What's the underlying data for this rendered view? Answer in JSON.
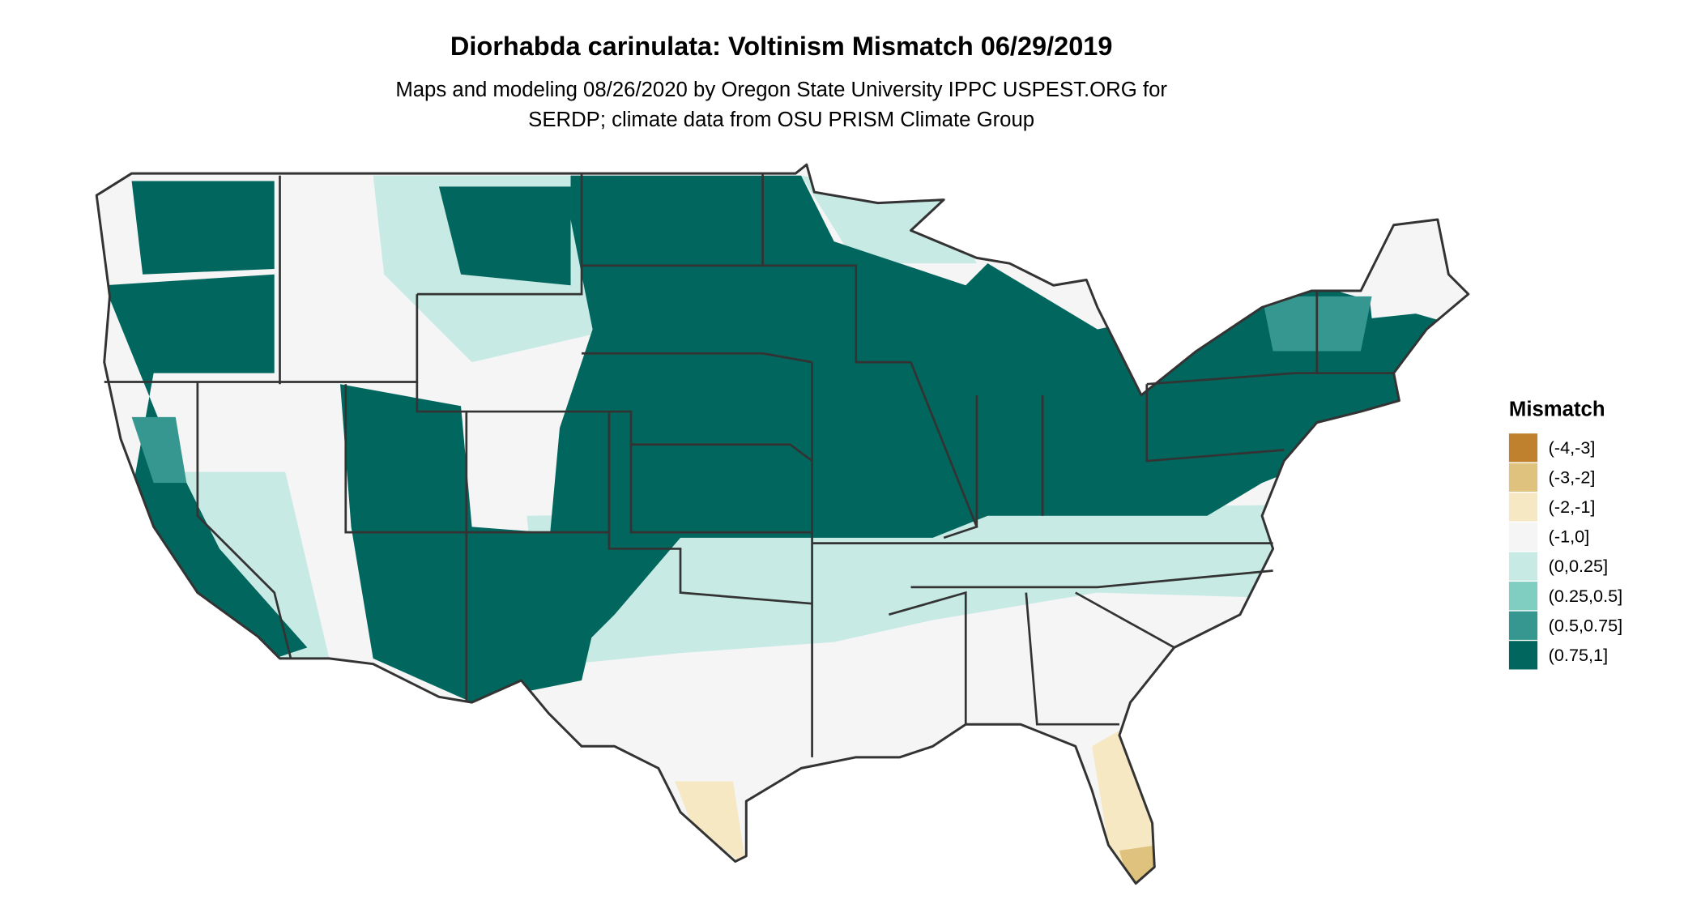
{
  "title": "Diorhabda carinulata: Voltinism Mismatch 06/29/2019",
  "subtitle": [
    "Maps and modeling 08/26/2020 by Oregon State University IPPC USPEST.ORG for",
    "SERDP; climate data from OSU PRISM Climate Group"
  ],
  "legend": {
    "title": "Mismatch",
    "items": [
      {
        "label": "(-4,-3]",
        "color": "#bf812d"
      },
      {
        "label": "(-3,-2]",
        "color": "#dfc27d"
      },
      {
        "label": "(-2,-1]",
        "color": "#f6e8c3"
      },
      {
        "label": "(-1,0]",
        "color": "#f5f5f5"
      },
      {
        "label": "(0,0.25]",
        "color": "#c7eae5"
      },
      {
        "label": "(0.25,0.5]",
        "color": "#80cdc1"
      },
      {
        "label": "(0.5,0.75]",
        "color": "#35978f"
      },
      {
        "label": "(0.75,1]",
        "color": "#01665e"
      }
    ]
  }
}
